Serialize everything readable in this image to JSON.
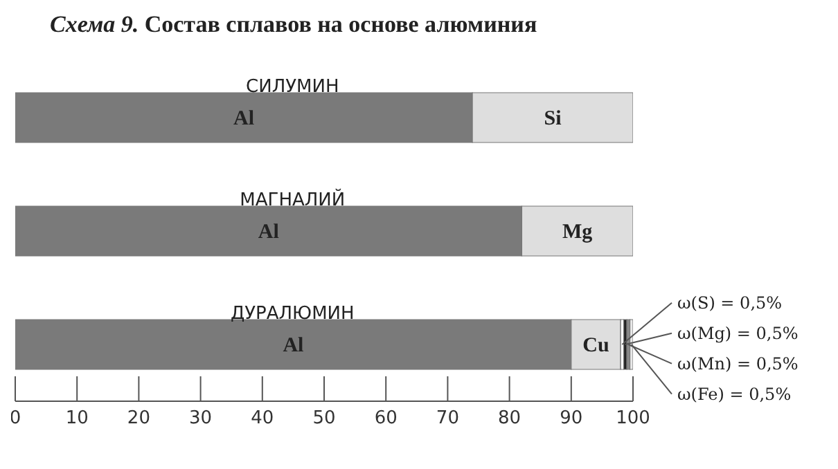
{
  "chart_data": {
    "type": "bar",
    "orientation": "horizontal",
    "stacked": true,
    "title": "Схема 9. Состав сплавов на основе алюминия",
    "categories": [
      "СИЛУМИН",
      "МАГНАЛИЙ",
      "ДУРАЛЮМИН"
    ],
    "series": [
      {
        "name": "Al",
        "color": "#7a7a7a",
        "values": [
          74,
          82,
          90
        ]
      },
      {
        "name": "Si",
        "color": "#dedede",
        "values": [
          26,
          null,
          null
        ]
      },
      {
        "name": "Mg",
        "color": "#dedede",
        "values": [
          null,
          18,
          null
        ]
      },
      {
        "name": "Cu",
        "color": "#dedede",
        "values": [
          null,
          null,
          8
        ]
      },
      {
        "color": "#ffffff",
        "values": [
          null,
          null,
          0.5
        ]
      },
      {
        "color": "#222222",
        "values": [
          null,
          null,
          0.5
        ]
      },
      {
        "color": "#8a8a8a",
        "values": [
          null,
          null,
          0.5
        ]
      },
      {
        "color": "#e8e8e8",
        "values": [
          null,
          null,
          0.5
        ]
      }
    ],
    "annotations": [
      "ω(S) = 0,5%",
      "ω(Mg) = 0,5%",
      "ω(Mn) = 0,5%",
      "ω(Fe) = 0,5%"
    ],
    "xlim": [
      0,
      100
    ],
    "xticks": [
      0,
      10,
      20,
      30,
      40,
      50,
      60,
      70,
      80,
      90,
      100
    ],
    "grid": false,
    "legend": false
  }
}
